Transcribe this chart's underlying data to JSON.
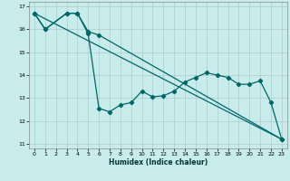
{
  "title": "",
  "xlabel": "Humidex (Indice chaleur)",
  "bg_color": "#c8ecec",
  "grid_color": "#aacccc",
  "line_color": "#006666",
  "xlim": [
    -0.5,
    23.5
  ],
  "ylim": [
    10.8,
    17.2
  ],
  "xticks": [
    0,
    1,
    2,
    3,
    4,
    5,
    6,
    7,
    8,
    9,
    10,
    11,
    12,
    13,
    14,
    15,
    16,
    17,
    18,
    19,
    20,
    21,
    22,
    23
  ],
  "yticks": [
    11,
    12,
    13,
    14,
    15,
    16,
    17
  ],
  "line1_x": [
    0,
    1,
    3,
    4,
    5,
    6,
    7,
    8,
    9,
    10,
    11,
    12,
    13,
    14,
    15,
    16,
    17,
    18,
    19,
    20,
    21,
    22,
    23
  ],
  "line1_y": [
    16.7,
    16.0,
    16.7,
    16.7,
    15.8,
    12.55,
    12.4,
    12.7,
    12.8,
    13.3,
    13.05,
    13.1,
    13.3,
    13.7,
    13.9,
    14.1,
    14.0,
    13.9,
    13.6,
    13.6,
    13.75,
    12.8,
    11.2
  ],
  "line2_x": [
    0,
    1,
    3,
    4,
    5,
    6,
    23
  ],
  "line2_y": [
    16.7,
    16.0,
    16.7,
    16.7,
    15.9,
    15.75,
    11.2
  ],
  "line3_x": [
    0,
    23
  ],
  "line3_y": [
    16.7,
    11.2
  ],
  "marker": "D",
  "markersize": 2.2,
  "linewidth": 0.9
}
